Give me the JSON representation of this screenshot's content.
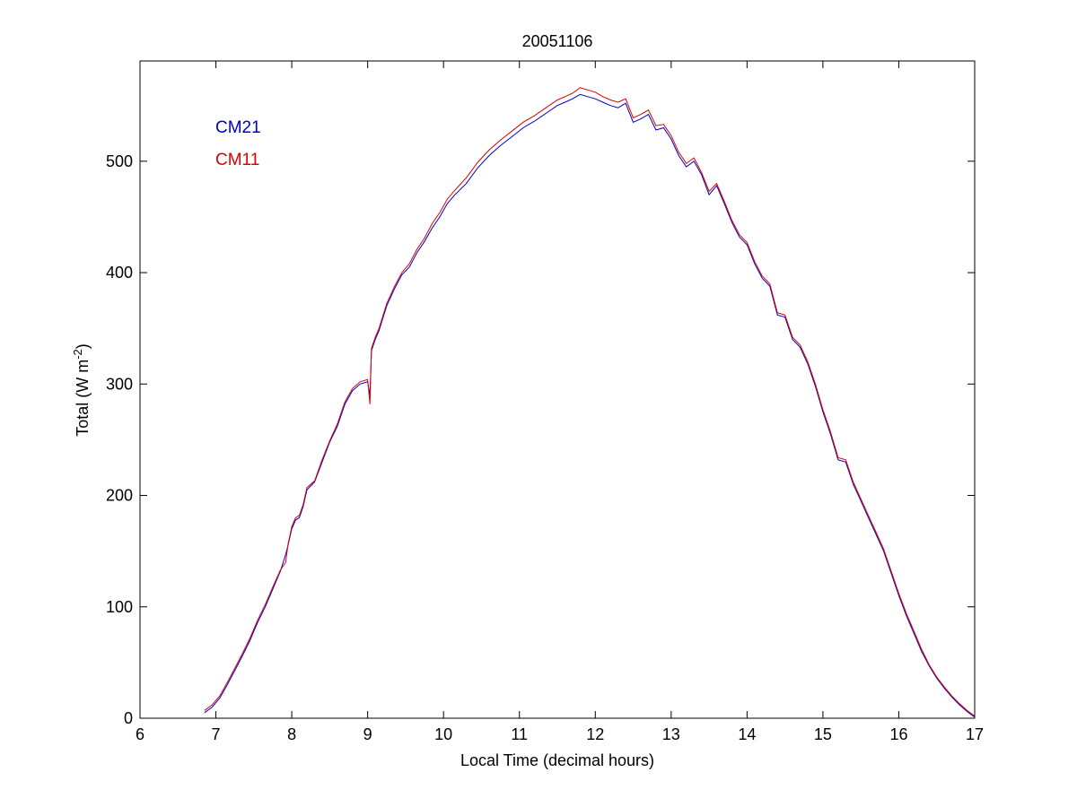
{
  "chart_data": {
    "type": "line",
    "title": "20051106",
    "xlabel": "Local Time (decimal hours)",
    "ylabel": {
      "prefix": "Total (W m",
      "sup": "-2",
      "suffix": ")"
    },
    "xlim": [
      6,
      17
    ],
    "ylim": [
      0,
      590
    ],
    "xticks": [
      6,
      7,
      8,
      9,
      10,
      11,
      12,
      13,
      14,
      15,
      16,
      17
    ],
    "yticks": [
      0,
      100,
      200,
      300,
      400,
      500
    ],
    "grid": false,
    "legend_position": "top-left",
    "series": [
      {
        "name": "CM21",
        "color": "#0000cc",
        "points": [
          [
            6.85,
            5
          ],
          [
            6.95,
            10
          ],
          [
            7.05,
            18
          ],
          [
            7.15,
            30
          ],
          [
            7.25,
            43
          ],
          [
            7.35,
            56
          ],
          [
            7.45,
            70
          ],
          [
            7.55,
            86
          ],
          [
            7.65,
            100
          ],
          [
            7.75,
            116
          ],
          [
            7.85,
            132
          ],
          [
            7.92,
            147
          ],
          [
            7.95,
            155
          ],
          [
            8.0,
            170
          ],
          [
            8.05,
            178
          ],
          [
            8.1,
            180
          ],
          [
            8.15,
            190
          ],
          [
            8.2,
            205
          ],
          [
            8.3,
            212
          ],
          [
            8.4,
            230
          ],
          [
            8.5,
            248
          ],
          [
            8.6,
            262
          ],
          [
            8.7,
            282
          ],
          [
            8.8,
            294
          ],
          [
            8.9,
            300
          ],
          [
            9.0,
            302
          ],
          [
            9.03,
            290
          ],
          [
            9.05,
            330
          ],
          [
            9.1,
            340
          ],
          [
            9.15,
            348
          ],
          [
            9.25,
            370
          ],
          [
            9.35,
            385
          ],
          [
            9.45,
            398
          ],
          [
            9.55,
            405
          ],
          [
            9.65,
            418
          ],
          [
            9.75,
            428
          ],
          [
            9.85,
            440
          ],
          [
            9.95,
            450
          ],
          [
            10.05,
            462
          ],
          [
            10.15,
            470
          ],
          [
            10.3,
            480
          ],
          [
            10.45,
            494
          ],
          [
            10.6,
            505
          ],
          [
            10.75,
            514
          ],
          [
            10.9,
            522
          ],
          [
            11.05,
            530
          ],
          [
            11.2,
            536
          ],
          [
            11.35,
            543
          ],
          [
            11.5,
            550
          ],
          [
            11.6,
            553
          ],
          [
            11.7,
            556
          ],
          [
            11.8,
            560
          ],
          [
            11.9,
            558
          ],
          [
            12.0,
            556
          ],
          [
            12.1,
            553
          ],
          [
            12.2,
            550
          ],
          [
            12.3,
            548
          ],
          [
            12.4,
            552
          ],
          [
            12.5,
            535
          ],
          [
            12.6,
            538
          ],
          [
            12.7,
            542
          ],
          [
            12.8,
            528
          ],
          [
            12.9,
            530
          ],
          [
            13.0,
            520
          ],
          [
            13.1,
            505
          ],
          [
            13.2,
            495
          ],
          [
            13.3,
            500
          ],
          [
            13.4,
            488
          ],
          [
            13.5,
            470
          ],
          [
            13.6,
            478
          ],
          [
            13.7,
            462
          ],
          [
            13.8,
            445
          ],
          [
            13.9,
            432
          ],
          [
            14.0,
            425
          ],
          [
            14.1,
            408
          ],
          [
            14.2,
            395
          ],
          [
            14.3,
            388
          ],
          [
            14.4,
            362
          ],
          [
            14.5,
            360
          ],
          [
            14.6,
            340
          ],
          [
            14.7,
            333
          ],
          [
            14.8,
            318
          ],
          [
            14.9,
            298
          ],
          [
            15.0,
            275
          ],
          [
            15.1,
            255
          ],
          [
            15.2,
            232
          ],
          [
            15.3,
            230
          ],
          [
            15.4,
            210
          ],
          [
            15.5,
            195
          ],
          [
            15.6,
            180
          ],
          [
            15.7,
            165
          ],
          [
            15.8,
            150
          ],
          [
            15.9,
            130
          ],
          [
            16.0,
            110
          ],
          [
            16.1,
            92
          ],
          [
            16.2,
            76
          ],
          [
            16.3,
            60
          ],
          [
            16.4,
            47
          ],
          [
            16.5,
            36
          ],
          [
            16.6,
            27
          ],
          [
            16.7,
            19
          ],
          [
            16.8,
            12
          ],
          [
            16.9,
            6
          ],
          [
            17.0,
            1
          ]
        ]
      },
      {
        "name": "CM11",
        "color": "#e00000",
        "points": [
          [
            6.85,
            7
          ],
          [
            6.95,
            12
          ],
          [
            7.05,
            20
          ],
          [
            7.15,
            32
          ],
          [
            7.25,
            45
          ],
          [
            7.35,
            58
          ],
          [
            7.45,
            72
          ],
          [
            7.55,
            88
          ],
          [
            7.65,
            102
          ],
          [
            7.75,
            118
          ],
          [
            7.85,
            133
          ],
          [
            7.92,
            140
          ],
          [
            7.95,
            156
          ],
          [
            8.0,
            172
          ],
          [
            8.05,
            180
          ],
          [
            8.1,
            182
          ],
          [
            8.15,
            192
          ],
          [
            8.2,
            207
          ],
          [
            8.3,
            213
          ],
          [
            8.4,
            232
          ],
          [
            8.5,
            249
          ],
          [
            8.6,
            264
          ],
          [
            8.7,
            284
          ],
          [
            8.8,
            296
          ],
          [
            8.9,
            302
          ],
          [
            9.0,
            304
          ],
          [
            9.03,
            282
          ],
          [
            9.05,
            332
          ],
          [
            9.1,
            342
          ],
          [
            9.15,
            350
          ],
          [
            9.25,
            372
          ],
          [
            9.35,
            387
          ],
          [
            9.45,
            400
          ],
          [
            9.55,
            408
          ],
          [
            9.65,
            421
          ],
          [
            9.75,
            431
          ],
          [
            9.85,
            444
          ],
          [
            9.95,
            454
          ],
          [
            10.05,
            466
          ],
          [
            10.15,
            474
          ],
          [
            10.3,
            485
          ],
          [
            10.45,
            499
          ],
          [
            10.6,
            510
          ],
          [
            10.75,
            519
          ],
          [
            10.9,
            527
          ],
          [
            11.05,
            535
          ],
          [
            11.2,
            541
          ],
          [
            11.35,
            548
          ],
          [
            11.5,
            555
          ],
          [
            11.6,
            558
          ],
          [
            11.7,
            561
          ],
          [
            11.8,
            566
          ],
          [
            11.9,
            564
          ],
          [
            12.0,
            562
          ],
          [
            12.1,
            558
          ],
          [
            12.2,
            555
          ],
          [
            12.3,
            553
          ],
          [
            12.4,
            556
          ],
          [
            12.5,
            539
          ],
          [
            12.6,
            542
          ],
          [
            12.7,
            546
          ],
          [
            12.8,
            532
          ],
          [
            12.9,
            533
          ],
          [
            13.0,
            523
          ],
          [
            13.1,
            508
          ],
          [
            13.2,
            498
          ],
          [
            13.3,
            503
          ],
          [
            13.4,
            490
          ],
          [
            13.5,
            473
          ],
          [
            13.6,
            480
          ],
          [
            13.7,
            464
          ],
          [
            13.8,
            447
          ],
          [
            13.9,
            434
          ],
          [
            14.0,
            427
          ],
          [
            14.1,
            410
          ],
          [
            14.2,
            397
          ],
          [
            14.3,
            390
          ],
          [
            14.4,
            364
          ],
          [
            14.5,
            362
          ],
          [
            14.6,
            342
          ],
          [
            14.7,
            335
          ],
          [
            14.8,
            320
          ],
          [
            14.9,
            300
          ],
          [
            15.0,
            277
          ],
          [
            15.1,
            257
          ],
          [
            15.2,
            234
          ],
          [
            15.3,
            232
          ],
          [
            15.4,
            212
          ],
          [
            15.5,
            197
          ],
          [
            15.6,
            182
          ],
          [
            15.7,
            167
          ],
          [
            15.8,
            152
          ],
          [
            15.9,
            132
          ],
          [
            16.0,
            112
          ],
          [
            16.1,
            94
          ],
          [
            16.2,
            78
          ],
          [
            16.3,
            62
          ],
          [
            16.4,
            48
          ],
          [
            16.5,
            37
          ],
          [
            16.6,
            28
          ],
          [
            16.7,
            20
          ],
          [
            16.8,
            13
          ],
          [
            16.9,
            7
          ],
          [
            17.0,
            2
          ]
        ]
      }
    ]
  }
}
